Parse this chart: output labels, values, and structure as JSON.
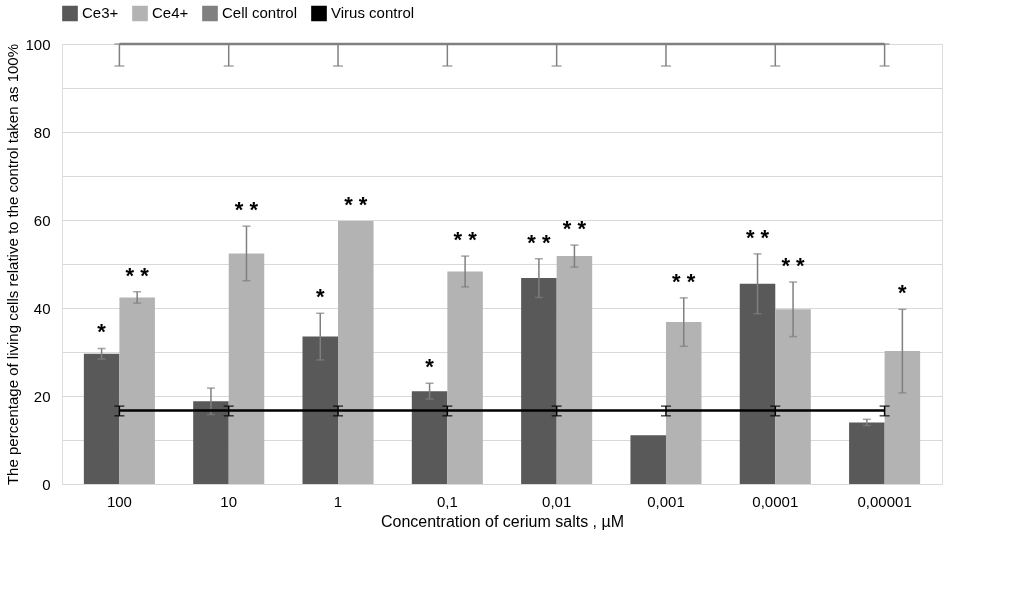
{
  "chart_data": {
    "type": "bar",
    "ylabel": "The percentage of living cells relative to the control taken as 100%",
    "xlabel": "Concentration of cerium salts , µM",
    "categories": [
      "100",
      "10",
      "1",
      "0,1",
      "0,01",
      "0,001",
      "0,0001",
      "0,00001"
    ],
    "series": [
      {
        "name": "Ce3+",
        "color": "#595959",
        "values": [
          29.6,
          18.8,
          33.5,
          21.1,
          46.8,
          11.1,
          45.5,
          14.0
        ],
        "errors": [
          1.2,
          3.0,
          5.3,
          1.8,
          4.4,
          null,
          6.8,
          0.7
        ],
        "value_labels": [
          "*",
          null,
          "*",
          "*",
          "* *",
          null,
          "* *",
          null
        ]
      },
      {
        "name": "Ce4+",
        "color": "#b3b3b3",
        "values": [
          42.4,
          52.4,
          59.8,
          48.3,
          51.8,
          36.8,
          39.7,
          30.2
        ],
        "errors": [
          1.3,
          6.2,
          null,
          3.5,
          2.5,
          5.5,
          6.2,
          9.5
        ],
        "value_labels": [
          "* *",
          "* *",
          "* *",
          "* *",
          "* *",
          "* *",
          "* *",
          "*"
        ]
      },
      {
        "name": "Cell control",
        "type": "line",
        "color": "#808080",
        "values": [
          100,
          100,
          100,
          100,
          100,
          100,
          100,
          100
        ],
        "errors": [
          [
            95,
            100
          ],
          [
            95,
            100
          ],
          [
            95,
            100
          ],
          [
            95,
            100
          ],
          [
            95,
            100
          ],
          [
            95,
            100
          ],
          [
            95,
            100
          ],
          [
            95,
            100
          ]
        ]
      },
      {
        "name": "Virus control",
        "type": "line",
        "color": "#000000",
        "values": [
          16.7,
          16.7,
          16.7,
          16.7,
          16.7,
          16.7,
          16.7,
          16.7
        ],
        "errors": [
          [
            15.5,
            17.7
          ],
          [
            15.5,
            17.7
          ],
          [
            15.5,
            17.7
          ],
          [
            15.5,
            17.7
          ],
          [
            15.5,
            17.7
          ],
          [
            15.5,
            17.7
          ],
          [
            15.5,
            17.7
          ],
          [
            15.5,
            17.7
          ]
        ]
      }
    ],
    "ylim": [
      0,
      100
    ],
    "yticks": [
      0,
      {
        "value": 10,
        "label": null
      },
      20,
      {
        "value": 30,
        "label": null
      },
      40,
      {
        "value": 50,
        "label": null
      },
      60,
      {
        "value": 70,
        "label": null
      },
      80,
      {
        "value": 90,
        "label": null
      },
      100
    ],
    "grid": "y",
    "legend": "top"
  }
}
